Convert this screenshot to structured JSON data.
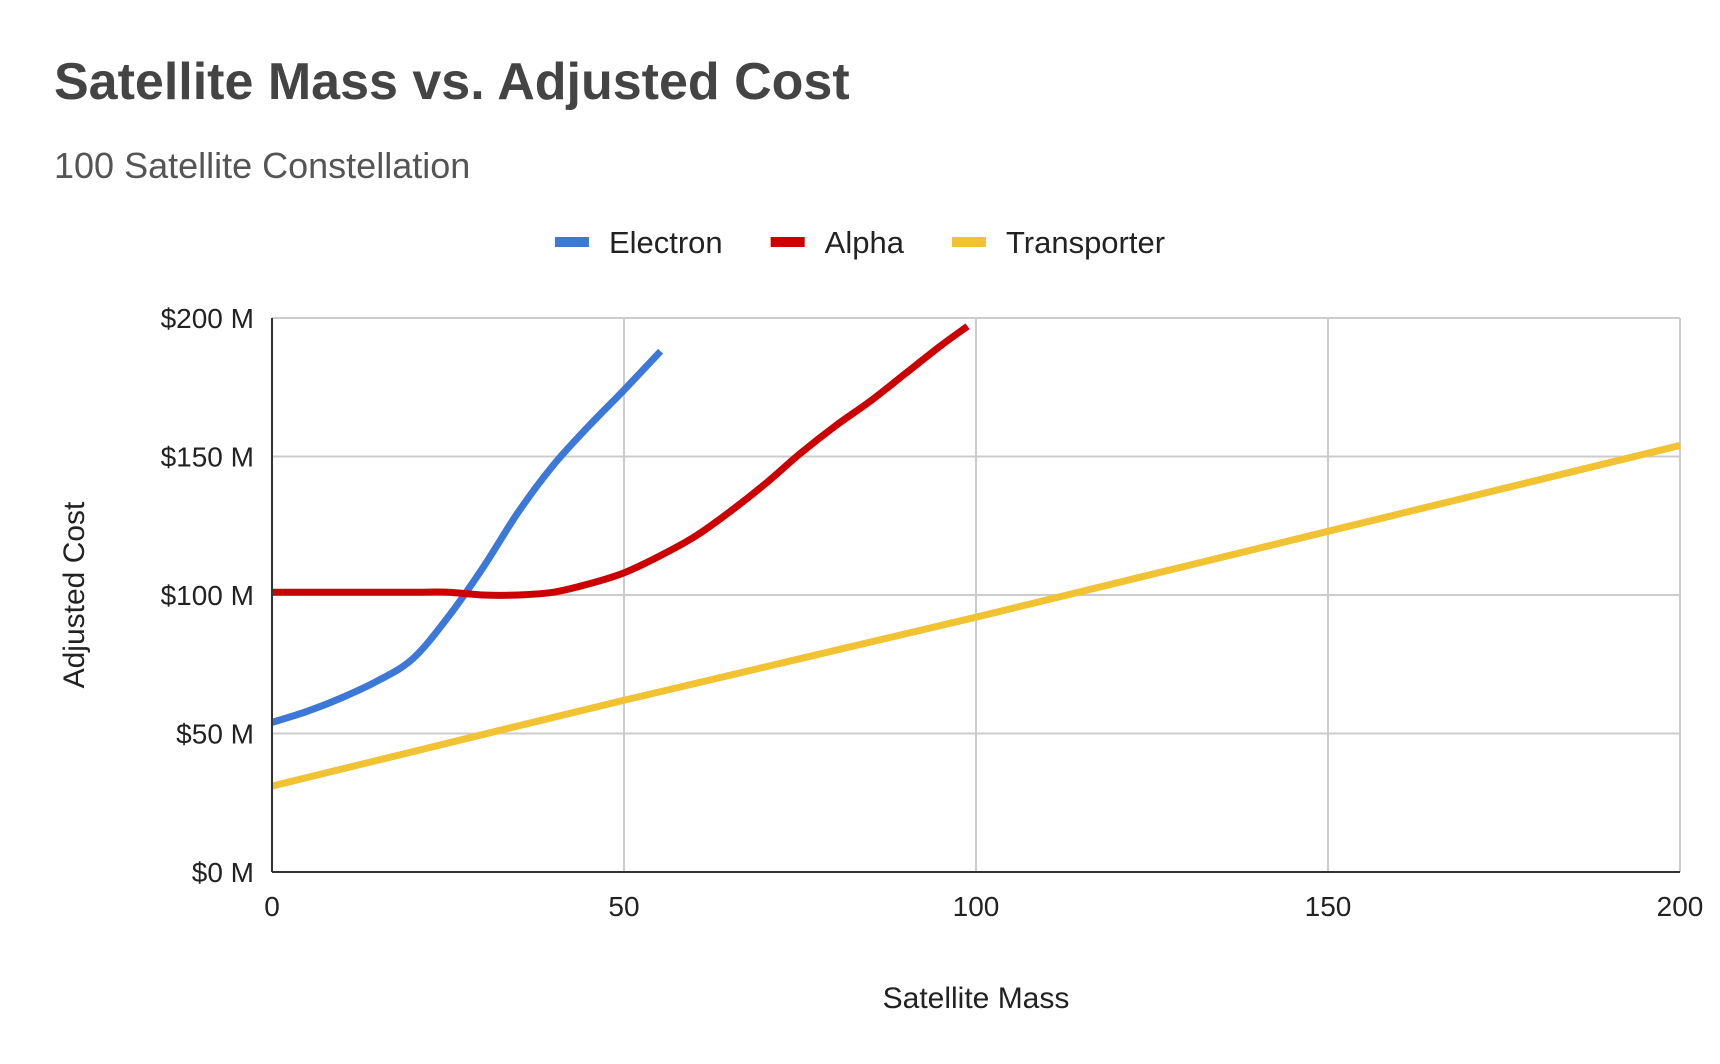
{
  "chart_data": {
    "type": "line",
    "title": "Satellite Mass vs. Adjusted Cost",
    "subtitle": "100 Satellite Constellation",
    "xlabel": "Satellite Mass",
    "ylabel": "Adjusted Cost",
    "xlim": [
      0,
      200
    ],
    "ylim": [
      0,
      200
    ],
    "x_ticks": [
      0,
      50,
      100,
      150,
      200
    ],
    "x_tick_labels": [
      "0",
      "50",
      "100",
      "150",
      "200"
    ],
    "y_ticks": [
      0,
      50,
      100,
      150,
      200
    ],
    "y_tick_labels": [
      "$0 M",
      "$50 M",
      "$100 M",
      "$150 M",
      "$200 M"
    ],
    "grid": true,
    "legend_position": "top",
    "series": [
      {
        "name": "Electron",
        "color": "#3c78d8",
        "x": [
          0,
          5,
          10,
          15,
          20,
          25,
          30,
          35,
          40,
          45,
          50,
          55.2
        ],
        "y": [
          54,
          58,
          63,
          69,
          77,
          92,
          110,
          130,
          147,
          161,
          174,
          188
        ]
      },
      {
        "name": "Alpha",
        "color": "#cc0000",
        "x": [
          0,
          10,
          20,
          25,
          30,
          35,
          40,
          45,
          50,
          55,
          60,
          65,
          70,
          75,
          80,
          85,
          90,
          95,
          98.8
        ],
        "y": [
          101,
          101,
          101,
          101,
          100,
          100,
          101,
          104,
          108,
          114,
          121,
          130,
          140,
          151,
          161,
          170,
          180,
          190,
          197
        ]
      },
      {
        "name": "Transporter",
        "color": "#f1c232",
        "x": [
          0,
          50,
          100,
          150,
          200
        ],
        "y": [
          31,
          62,
          92,
          123,
          154
        ]
      }
    ]
  }
}
